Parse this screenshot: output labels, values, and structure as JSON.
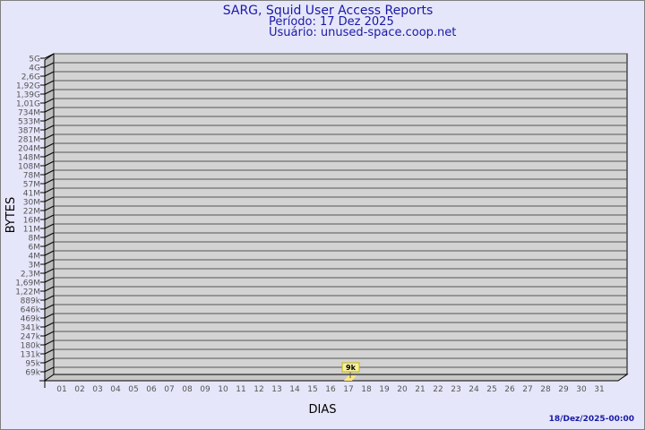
{
  "chart_data": {
    "type": "bar",
    "title": "SARG, Squid User Access Reports",
    "subtitle_lines": [
      "Período: 17 Dez 2025",
      "Usuário: unused-space.coop.net"
    ],
    "xlabel": "DIAS",
    "ylabel": "BYTES",
    "y_scale": "log",
    "y_tick_labels": [
      "5G",
      "4G",
      "2,6G",
      "1,92G",
      "1,39G",
      "1,01G",
      "734M",
      "533M",
      "387M",
      "281M",
      "204M",
      "148M",
      "108M",
      "78M",
      "57M",
      "41M",
      "30M",
      "22M",
      "16M",
      "11M",
      "8M",
      "6M",
      "4M",
      "3M",
      "2,3M",
      "1,69M",
      "1,22M",
      "889k",
      "646k",
      "469k",
      "341k",
      "247k",
      "180k",
      "131k",
      "95k",
      "69k"
    ],
    "categories": [
      "01",
      "02",
      "03",
      "04",
      "05",
      "06",
      "07",
      "08",
      "09",
      "10",
      "11",
      "12",
      "13",
      "14",
      "15",
      "16",
      "17",
      "18",
      "19",
      "20",
      "21",
      "22",
      "23",
      "24",
      "25",
      "26",
      "27",
      "28",
      "29",
      "30",
      "31"
    ],
    "bars": [
      {
        "category": "17",
        "value": 9000,
        "label": "9k"
      }
    ],
    "grid": true,
    "colors": {
      "background": "#e6e6fa",
      "plot": "#d3d3d3",
      "title": "#1a1aa6",
      "bar": "#ffe680",
      "label_box": "#f5f0a0"
    }
  },
  "footer": {
    "timestamp": "18/Dez/2025-00:00"
  }
}
